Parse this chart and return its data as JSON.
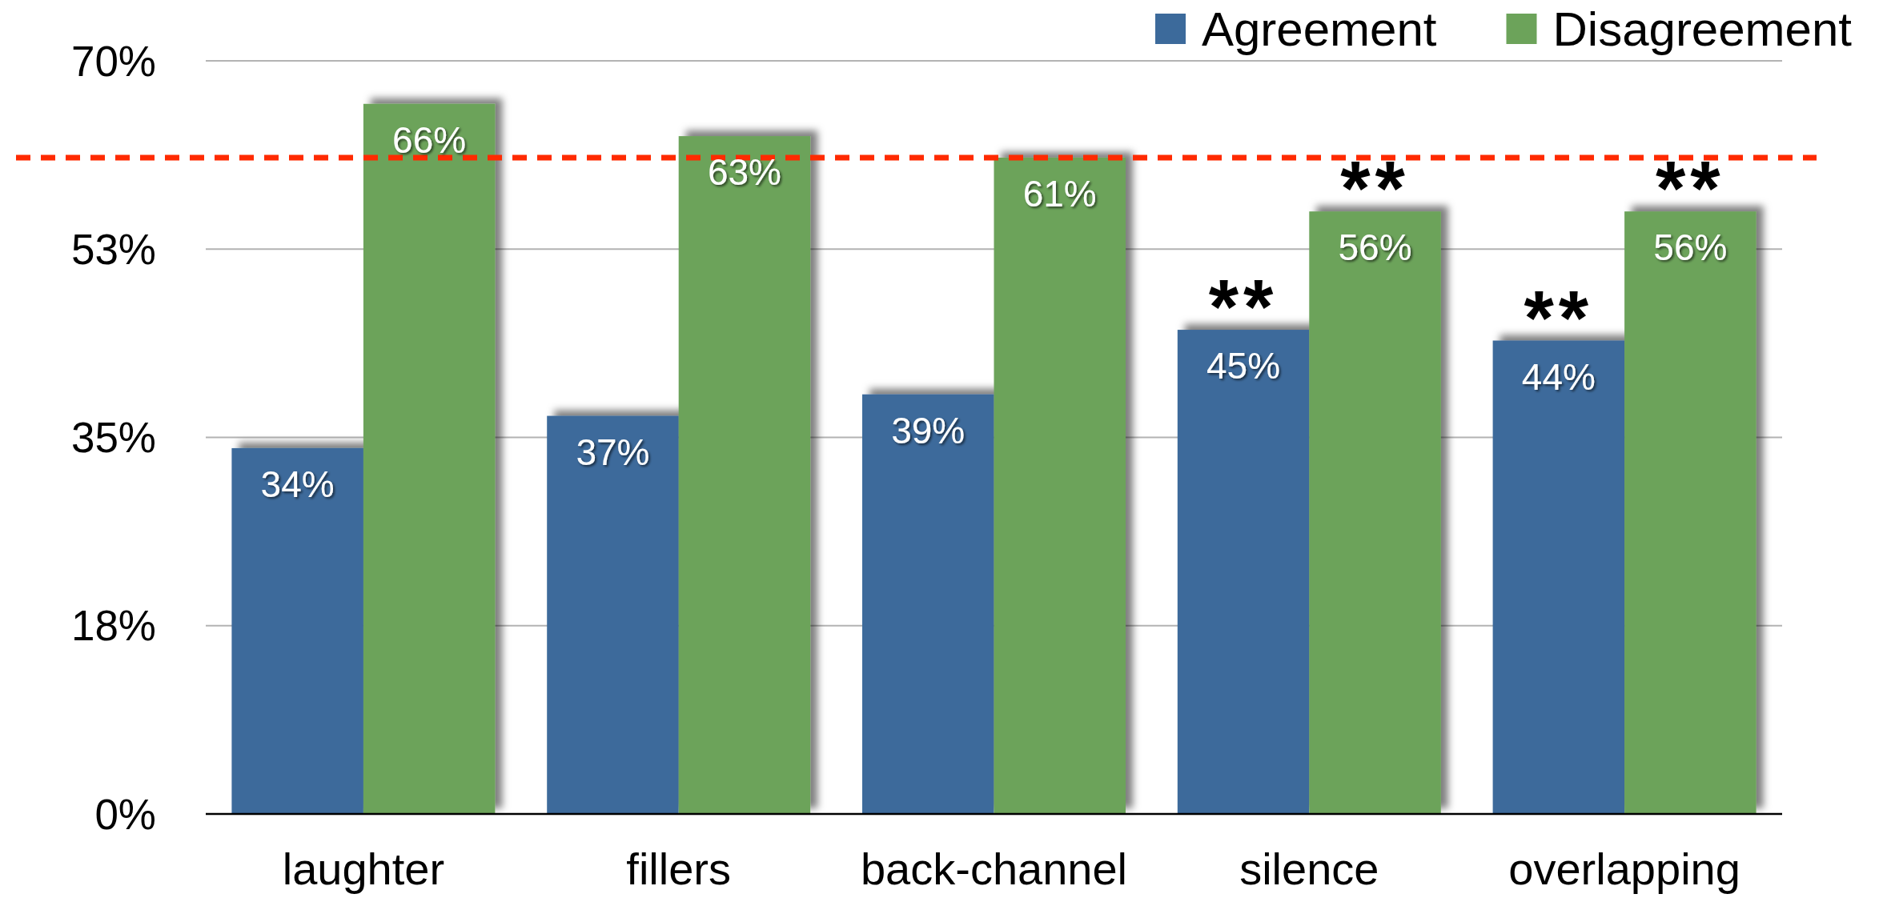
{
  "chart_data": {
    "type": "bar",
    "categories": [
      "laughter",
      "fillers",
      "back-channel",
      "silence",
      "overlapping"
    ],
    "series": [
      {
        "name": "Agreement",
        "color": "#3c6a9b",
        "values": [
          34,
          37,
          39,
          45,
          44
        ],
        "value_labels": [
          "34%",
          "37%",
          "39%",
          "45%",
          "44%"
        ]
      },
      {
        "name": "Disagreement",
        "color": "#6ca35a",
        "values": [
          66,
          63,
          61,
          56,
          56
        ],
        "value_labels": [
          "66%",
          "63%",
          "61%",
          "56%",
          "56%"
        ]
      }
    ],
    "ylim": [
      0,
      70
    ],
    "yticks": [
      {
        "value": 0,
        "label": "0%"
      },
      {
        "value": 17.5,
        "label": "18%"
      },
      {
        "value": 35,
        "label": "35%"
      },
      {
        "value": 52.5,
        "label": "53%"
      },
      {
        "value": 70,
        "label": "70%"
      }
    ],
    "grid": "y",
    "legend": "top right",
    "ref_lines": [
      {
        "axis": "y",
        "value": 61,
        "color": "#ff2a00",
        "line_style": "dashed"
      }
    ],
    "annotations": [
      {
        "text": "**",
        "x": "silence",
        "y": 45
      },
      {
        "text": "**",
        "x": "silence",
        "y": 56
      },
      {
        "text": "**",
        "x": "overlapping",
        "y": 44
      },
      {
        "text": "**",
        "x": "overlapping",
        "y": 56
      }
    ]
  }
}
